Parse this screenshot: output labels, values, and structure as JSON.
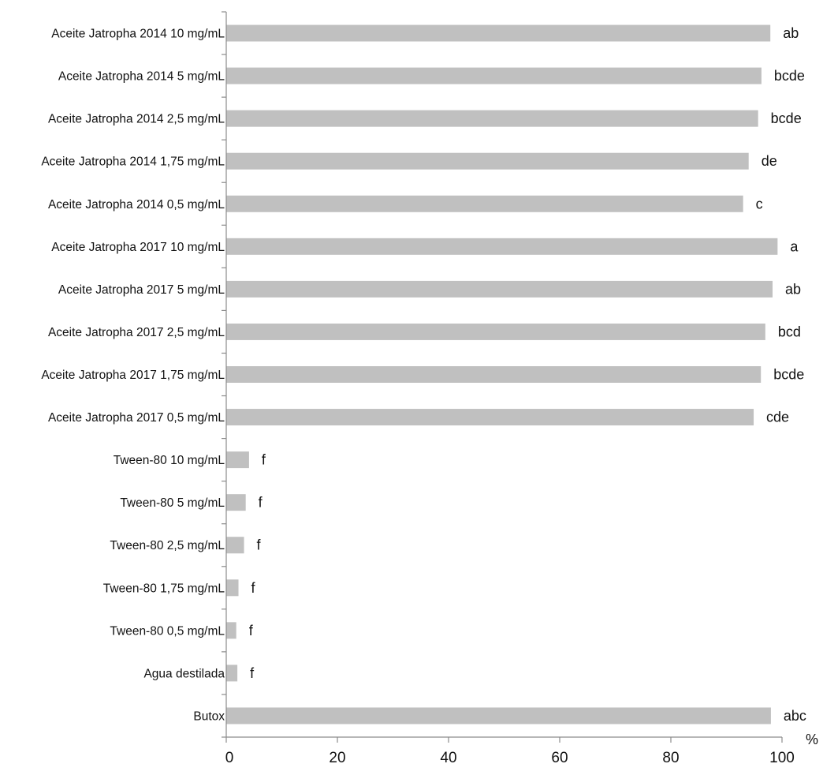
{
  "chart_data": {
    "type": "bar",
    "orientation": "horizontal",
    "title": "",
    "xlabel": "%",
    "ylabel": "",
    "xlim": [
      0,
      100
    ],
    "x_ticks": [
      0,
      20,
      40,
      60,
      80,
      100
    ],
    "grid": false,
    "legend": "none",
    "bar_color": "#c0c0c0",
    "categories": [
      "Aceite Jatropha 2014 10 mg/mL",
      "Aceite Jatropha 2014 5 mg/mL",
      "Aceite Jatropha 2014 2,5 mg/mL",
      "Aceite Jatropha 2014 1,75 mg/mL",
      "Aceite Jatropha 2014 0,5 mg/mL",
      "Aceite Jatropha 2017 10 mg/mL",
      "Aceite Jatropha 2017 5 mg/mL",
      "Aceite Jatropha 2017 2,5 mg/mL",
      "Aceite Jatropha 2017 1,75 mg/mL",
      "Aceite Jatropha 2017 0,5 mg/mL",
      "Tween-80 10 mg/mL",
      "Tween-80 5 mg/mL",
      "Tween-80 2,5 mg/mL",
      "Tween-80 1,75 mg/mL",
      "Tween-80 0,5 mg/mL",
      "Agua destilada",
      "Butox"
    ],
    "values": [
      97.9,
      96.3,
      95.7,
      94.0,
      93.0,
      99.2,
      98.3,
      97.0,
      96.2,
      94.9,
      4.1,
      3.5,
      3.2,
      2.2,
      1.8,
      2.0,
      98.0
    ],
    "significance": [
      "ab",
      "bcde",
      "bcde",
      "de",
      "c",
      "a",
      "ab",
      "bcd",
      "bcde",
      "cde",
      "f",
      "f",
      "f",
      "f",
      "f",
      "f",
      "abc"
    ]
  }
}
